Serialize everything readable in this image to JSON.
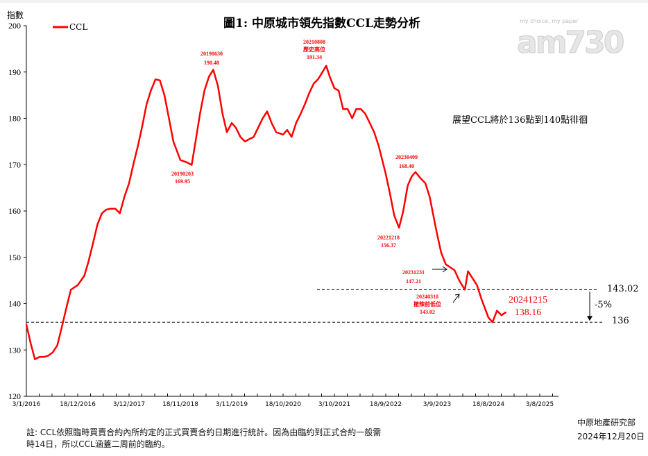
{
  "chart_data": {
    "type": "line",
    "title": "圖1: 中原城市領先指數CCL走勢分析",
    "ylabel": "指數",
    "ylim": [
      120,
      200
    ],
    "yticks": [
      120,
      130,
      140,
      150,
      160,
      170,
      180,
      190,
      200
    ],
    "xticks": [
      "3/1/2016",
      "18/12/2016",
      "3/12/2017",
      "18/11/2018",
      "3/11/2019",
      "18/10/2020",
      "3/10/2021",
      "18/9/2022",
      "3/9/2023",
      "18/8/2024",
      "3/8/2025"
    ],
    "xlim": [
      "2016-01-03",
      "2025-12-31"
    ],
    "legend": "top-left",
    "grid": false,
    "series": [
      {
        "name": "CCL",
        "color": "#ff0000",
        "points": [
          [
            "2016-01-03",
            135.5
          ],
          [
            "2016-02-01",
            131.5
          ],
          [
            "2016-03-01",
            128
          ],
          [
            "2016-04-01",
            128.5
          ],
          [
            "2016-05-01",
            128.5
          ],
          [
            "2016-06-01",
            128.8
          ],
          [
            "2016-07-01",
            129.5
          ],
          [
            "2016-08-01",
            131
          ],
          [
            "2016-09-01",
            135
          ],
          [
            "2016-10-01",
            139
          ],
          [
            "2016-11-01",
            143
          ],
          [
            "2016-12-18",
            144
          ],
          [
            "2017-02-01",
            146
          ],
          [
            "2017-03-01",
            149
          ],
          [
            "2017-04-01",
            153
          ],
          [
            "2017-05-01",
            157
          ],
          [
            "2017-06-01",
            159.5
          ],
          [
            "2017-07-01",
            160.3
          ],
          [
            "2017-08-01",
            160.5
          ],
          [
            "2017-09-01",
            160.5
          ],
          [
            "2017-10-01",
            159.5
          ],
          [
            "2017-11-01",
            163
          ],
          [
            "2017-12-03",
            166
          ],
          [
            "2018-01-01",
            170
          ],
          [
            "2018-02-01",
            174
          ],
          [
            "2018-03-01",
            178
          ],
          [
            "2018-04-01",
            183
          ],
          [
            "2018-05-01",
            186
          ],
          [
            "2018-06-01",
            188.4
          ],
          [
            "2018-07-01",
            188.2
          ],
          [
            "2018-08-01",
            185
          ],
          [
            "2018-09-01",
            180
          ],
          [
            "2018-10-01",
            175
          ],
          [
            "2018-11-18",
            171
          ],
          [
            "2019-01-01",
            170.5
          ],
          [
            "2019-02-03",
            169.95
          ],
          [
            "2019-03-01",
            175
          ],
          [
            "2019-04-01",
            181
          ],
          [
            "2019-05-01",
            186
          ],
          [
            "2019-06-01",
            189
          ],
          [
            "2019-06-30",
            190.48
          ],
          [
            "2019-08-01",
            187
          ],
          [
            "2019-09-01",
            181
          ],
          [
            "2019-10-01",
            177
          ],
          [
            "2019-11-03",
            179
          ],
          [
            "2019-12-01",
            178
          ],
          [
            "2020-01-01",
            176
          ],
          [
            "2020-02-01",
            175
          ],
          [
            "2020-03-01",
            175.5
          ],
          [
            "2020-04-01",
            176
          ],
          [
            "2020-05-01",
            178
          ],
          [
            "2020-06-01",
            180
          ],
          [
            "2020-07-01",
            181.5
          ],
          [
            "2020-08-01",
            179
          ],
          [
            "2020-09-01",
            177
          ],
          [
            "2020-10-18",
            176.5
          ],
          [
            "2020-11-15",
            177.5
          ],
          [
            "2020-12-15",
            176
          ],
          [
            "2021-01-15",
            179
          ],
          [
            "2021-02-15",
            181
          ],
          [
            "2021-03-15",
            183
          ],
          [
            "2021-04-15",
            185.5
          ],
          [
            "2021-05-15",
            187.5
          ],
          [
            "2021-06-15",
            188.5
          ],
          [
            "2021-08-08",
            191.34
          ],
          [
            "2021-09-01",
            189
          ],
          [
            "2021-10-03",
            186.5
          ],
          [
            "2021-11-01",
            186
          ],
          [
            "2021-12-01",
            182
          ],
          [
            "2022-01-01",
            182
          ],
          [
            "2022-02-01",
            180
          ],
          [
            "2022-03-01",
            182
          ],
          [
            "2022-04-01",
            182
          ],
          [
            "2022-05-01",
            181
          ],
          [
            "2022-06-01",
            179
          ],
          [
            "2022-07-01",
            177
          ],
          [
            "2022-08-01",
            174
          ],
          [
            "2022-09-18",
            168
          ],
          [
            "2022-10-15",
            164
          ],
          [
            "2022-11-15",
            159
          ],
          [
            "2022-12-18",
            156.37
          ],
          [
            "2023-01-15",
            160
          ],
          [
            "2023-02-15",
            165.5
          ],
          [
            "2023-03-15",
            167.5
          ],
          [
            "2023-04-09",
            168.4
          ],
          [
            "2023-05-15",
            167
          ],
          [
            "2023-06-15",
            166
          ],
          [
            "2023-07-15",
            163
          ],
          [
            "2023-08-15",
            158
          ],
          [
            "2023-09-03",
            155
          ],
          [
            "2023-10-01",
            151
          ],
          [
            "2023-11-01",
            148.5
          ],
          [
            "2023-12-31",
            147.21
          ],
          [
            "2024-02-01",
            145
          ],
          [
            "2024-03-10",
            143.02
          ],
          [
            "2024-04-01",
            147
          ],
          [
            "2024-05-01",
            145.5
          ],
          [
            "2024-06-01",
            144
          ],
          [
            "2024-07-01",
            141
          ],
          [
            "2024-08-18",
            137
          ],
          [
            "2024-09-15",
            136
          ],
          [
            "2024-10-15",
            138.5
          ],
          [
            "2024-11-15",
            137.5
          ],
          [
            "2024-12-15",
            138.16
          ]
        ]
      }
    ],
    "reference_lines": [
      {
        "value": 143.02,
        "label": "143.02"
      },
      {
        "value": 136,
        "label": "136"
      }
    ],
    "change_label": "-5%",
    "annotations": [
      {
        "date": "20190203",
        "value": "169.95"
      },
      {
        "date": "20190630",
        "value": "190.48"
      },
      {
        "date": "20210808",
        "note": "歷史高位",
        "value": "191.34"
      },
      {
        "date": "20221218",
        "value": "156.37"
      },
      {
        "date": "20230409",
        "value": "168.40"
      },
      {
        "date": "20231231",
        "value": "147.21"
      },
      {
        "date": "20240310",
        "note": "撤辣前低位",
        "value": "143.02"
      },
      {
        "date": "20241215",
        "value": "138.16"
      }
    ],
    "outlook": "展望CCL將於136點到140點徘徊"
  },
  "logo": {
    "text": "am730",
    "tagline": "my choice, my paper"
  },
  "footer": {
    "note_line1": "註: CCL依照臨時買賣合約內所約定的正式買賣合約日期進行統計。因為由臨約到正式合約一般需",
    "note_line2": "時14日，所以CCL涵蓋二周前的臨約。",
    "source": "中原地產研究部",
    "date": "2024年12月20日"
  }
}
